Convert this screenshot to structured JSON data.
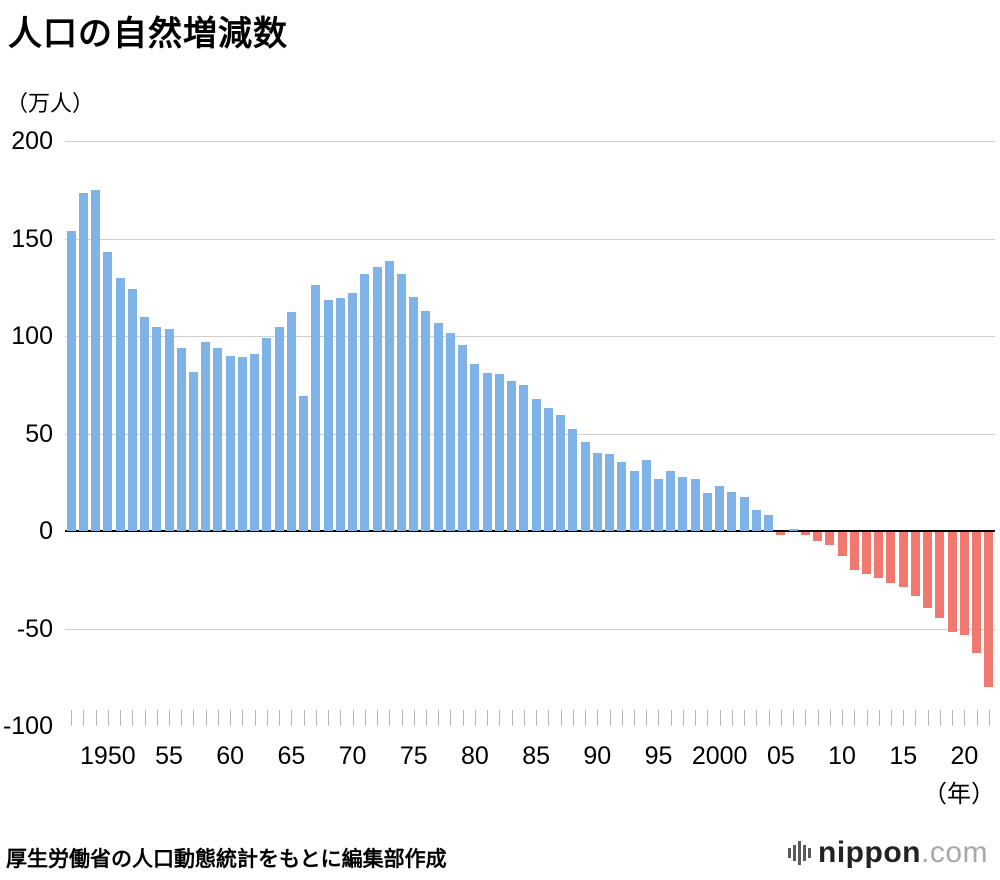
{
  "title": "人口の自然増減数",
  "axis": {
    "y_unit": "（万人）",
    "x_unit": "（年）",
    "y_ticks": [
      200,
      150,
      100,
      50,
      0,
      -50,
      -100
    ],
    "x_ticks": [
      {
        "year": 1950,
        "label": "1950"
      },
      {
        "year": 1955,
        "label": "55"
      },
      {
        "year": 1960,
        "label": "60"
      },
      {
        "year": 1965,
        "label": "65"
      },
      {
        "year": 1970,
        "label": "70"
      },
      {
        "year": 1975,
        "label": "75"
      },
      {
        "year": 1980,
        "label": "80"
      },
      {
        "year": 1985,
        "label": "85"
      },
      {
        "year": 1990,
        "label": "90"
      },
      {
        "year": 1995,
        "label": "95"
      },
      {
        "year": 2000,
        "label": "2000"
      },
      {
        "year": 2005,
        "label": "05"
      },
      {
        "year": 2010,
        "label": "10"
      },
      {
        "year": 2015,
        "label": "15"
      },
      {
        "year": 2020,
        "label": "20"
      }
    ]
  },
  "colors": {
    "positive": "#7fb2e6",
    "negative": "#f0786e",
    "gridline": "#cfcfcf",
    "zero_line": "#000000",
    "year_tick": "#b5b5b5"
  },
  "footer": {
    "source": "厚生労働省の人口動態統計をもとに編集部作成"
  },
  "logo": {
    "brand": "nippon",
    "suffix": ".com"
  },
  "chart_data": {
    "type": "bar",
    "title": "人口の自然増減数",
    "ylabel": "万人",
    "xlabel": "年",
    "ylim": [
      -100,
      200
    ],
    "grid": "horizontal",
    "x": [
      1947,
      1948,
      1949,
      1950,
      1951,
      1952,
      1953,
      1954,
      1955,
      1956,
      1957,
      1958,
      1959,
      1960,
      1961,
      1962,
      1963,
      1964,
      1965,
      1966,
      1967,
      1968,
      1969,
      1970,
      1971,
      1972,
      1973,
      1974,
      1975,
      1976,
      1977,
      1978,
      1979,
      1980,
      1981,
      1982,
      1983,
      1984,
      1985,
      1986,
      1987,
      1988,
      1989,
      1990,
      1991,
      1992,
      1993,
      1994,
      1995,
      1996,
      1997,
      1998,
      1999,
      2000,
      2001,
      2002,
      2003,
      2004,
      2005,
      2006,
      2007,
      2008,
      2009,
      2010,
      2011,
      2012,
      2013,
      2014,
      2015,
      2016,
      2017,
      2018,
      2019,
      2020,
      2021,
      2022
    ],
    "values": [
      154.1,
      173.1,
      175.1,
      143.3,
      129.9,
      124.0,
      109.6,
      104.8,
      103.7,
      94.1,
      81.4,
      96.9,
      93.6,
      89.9,
      89.4,
      90.8,
      98.9,
      104.4,
      112.3,
      69.1,
      126.1,
      118.5,
      119.6,
      122.1,
      131.6,
      135.5,
      138.3,
      131.9,
      119.9,
      112.9,
      106.5,
      101.3,
      95.3,
      85.4,
      80.9,
      80.4,
      76.9,
      75.0,
      67.9,
      63.2,
      59.6,
      52.1,
      45.8,
      40.1,
      39.3,
      35.2,
      31.0,
      36.2,
      26.5,
      31.0,
      27.8,
      26.7,
      19.6,
      22.9,
      20.0,
      17.2,
      10.9,
      8.2,
      -2.1,
      0.8,
      -1.9,
      -5.1,
      -7.2,
      -12.6,
      -20.2,
      -21.9,
      -23.9,
      -26.9,
      -28.5,
      -33.1,
      -39.4,
      -44.4,
      -51.6,
      -53.2,
      -62.8,
      -79.8
    ]
  }
}
